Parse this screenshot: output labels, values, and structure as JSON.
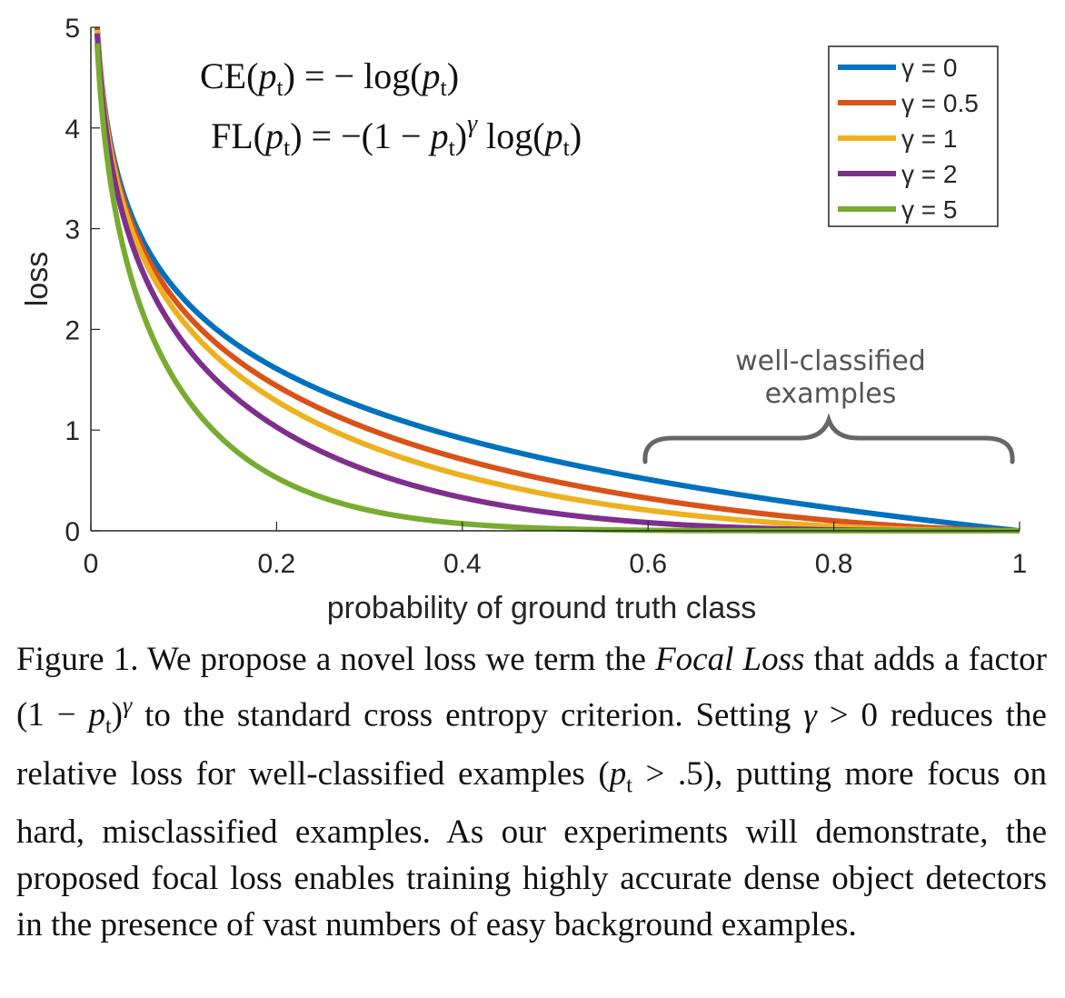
{
  "chart_data": {
    "type": "line",
    "xlabel": "probability of ground truth class",
    "ylabel": "loss",
    "xlim": [
      0,
      1
    ],
    "ylim": [
      0,
      5
    ],
    "xticks": [
      "0",
      "0.2",
      "0.4",
      "0.6",
      "0.8",
      "1"
    ],
    "yticks": [
      "0",
      "1",
      "2",
      "3",
      "4",
      "5"
    ],
    "grid": false,
    "legend_placement": "top-right",
    "x": [
      0.01,
      0.05,
      0.1,
      0.2,
      0.3,
      0.4,
      0.5,
      0.6,
      0.7,
      0.8,
      0.9,
      1.0
    ],
    "series": [
      {
        "name": "γ = 0",
        "color": "#0072BD",
        "gamma": 0,
        "values": [
          4.61,
          3.0,
          2.3,
          1.61,
          1.2,
          0.92,
          0.69,
          0.51,
          0.36,
          0.22,
          0.11,
          0.0
        ]
      },
      {
        "name": "γ = 0.5",
        "color": "#D95319",
        "gamma": 0.5,
        "values": [
          4.58,
          2.92,
          2.18,
          1.44,
          1.01,
          0.71,
          0.49,
          0.32,
          0.2,
          0.1,
          0.03,
          0.0
        ]
      },
      {
        "name": "γ = 1",
        "color": "#EDB120",
        "gamma": 1,
        "values": [
          4.56,
          2.85,
          2.07,
          1.29,
          0.84,
          0.55,
          0.35,
          0.2,
          0.11,
          0.04,
          0.01,
          0.0
        ]
      },
      {
        "name": "γ = 2",
        "color": "#7E2F8E",
        "gamma": 2,
        "values": [
          4.52,
          2.7,
          1.87,
          1.03,
          0.59,
          0.33,
          0.17,
          0.08,
          0.03,
          0.01,
          0.0,
          0.0
        ]
      },
      {
        "name": "γ = 5",
        "color": "#77AC30",
        "gamma": 5,
        "values": [
          4.38,
          2.32,
          1.36,
          0.53,
          0.2,
          0.07,
          0.02,
          0.01,
          0.0,
          0.0,
          0.0,
          0.0
        ]
      }
    ],
    "annotations": {
      "formula_ce": "CE(pt) = − log(pt)",
      "formula_fl": "FL(pt) = −(1 − pt)^γ log(pt)",
      "bracket_label_line1": "well-classified",
      "bracket_label_line2": "examples",
      "bracket_range": [
        0.6,
        1.0
      ]
    }
  },
  "caption": {
    "figure_label": "Figure 1.",
    "text_1": " We propose a novel loss we term the ",
    "focal_loss_italic": "Focal Loss",
    "text_2": " that adds a factor ",
    "factor": "(1 − pt)^γ",
    "text_3": " to the standard cross entropy criterion. Setting ",
    "gamma_condition": "γ > 0",
    "text_4": " reduces the relative loss for well-classified examples ",
    "pt_condition": "(pt > .5)",
    "text_5": ", putting more focus on hard, misclassified examples. As our experiments will demonstrate, the proposed focal loss enables training highly accurate dense object detectors in the presence of vast numbers of easy background examples."
  }
}
